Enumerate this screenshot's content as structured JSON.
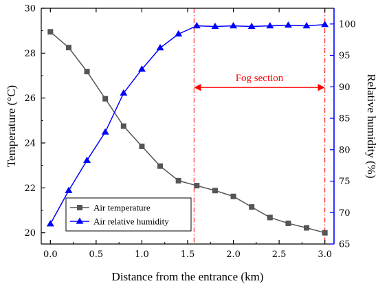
{
  "chart_data": {
    "type": "line",
    "xlabel": "Distance from the entrance (km)",
    "ylabel": "Temperature (°C)",
    "y2label": "Relative humidity (%)",
    "xlim": [
      -0.1,
      3.1
    ],
    "ylim": [
      19.5,
      30
    ],
    "y2lim": [
      65,
      102.5
    ],
    "x_ticks": [
      0,
      0.5,
      1,
      1.5,
      2,
      2.5,
      3
    ],
    "x_tick_labels": [
      "0.0",
      "0.5",
      "1.0",
      "1.5",
      "2.0",
      "2.5",
      "3.0"
    ],
    "y_ticks": [
      20,
      22,
      24,
      26,
      28,
      30
    ],
    "y_tick_labels": [
      "20",
      "22",
      "24",
      "26",
      "28",
      "30"
    ],
    "y2_ticks": [
      65,
      70,
      75,
      80,
      85,
      90,
      95,
      100
    ],
    "y2_tick_labels": [
      "65",
      "70",
      "75",
      "80",
      "85",
      "90",
      "95",
      "100"
    ],
    "grid": false,
    "legend_position": "bottom-left",
    "series": [
      {
        "name": "Air temperature",
        "axis": "left",
        "marker": "square",
        "color": "#555555",
        "x": [
          0,
          0.2,
          0.4,
          0.6,
          0.8,
          1.0,
          1.2,
          1.4,
          1.6,
          1.8,
          2.0,
          2.2,
          2.4,
          2.6,
          2.8,
          3.0
        ],
        "values": [
          28.95,
          28.25,
          27.18,
          25.97,
          24.75,
          23.85,
          22.97,
          22.32,
          22.1,
          21.88,
          21.62,
          21.15,
          20.68,
          20.42,
          20.22,
          20.0
        ]
      },
      {
        "name": "Air relative humidity",
        "axis": "right",
        "marker": "triangle",
        "color": "#0000ff",
        "x": [
          0,
          0.2,
          0.4,
          0.6,
          0.8,
          1.0,
          1.2,
          1.4,
          1.6,
          1.8,
          2.0,
          2.2,
          2.4,
          2.6,
          2.8,
          3.0
        ],
        "values": [
          68.2,
          73.5,
          78.3,
          82.8,
          89.0,
          92.8,
          96.2,
          98.4,
          99.7,
          99.6,
          99.7,
          99.6,
          99.7,
          99.8,
          99.7,
          99.9
        ]
      }
    ],
    "annotations": [
      {
        "text": "Fog section",
        "color": "#ff0000",
        "x_start": 1.57,
        "x_end": 3.0,
        "arrow_y": 89.9
      }
    ],
    "colors": {
      "axis": "#000000",
      "right_axis": "#0000ff",
      "annotation": "#ff0000"
    }
  }
}
